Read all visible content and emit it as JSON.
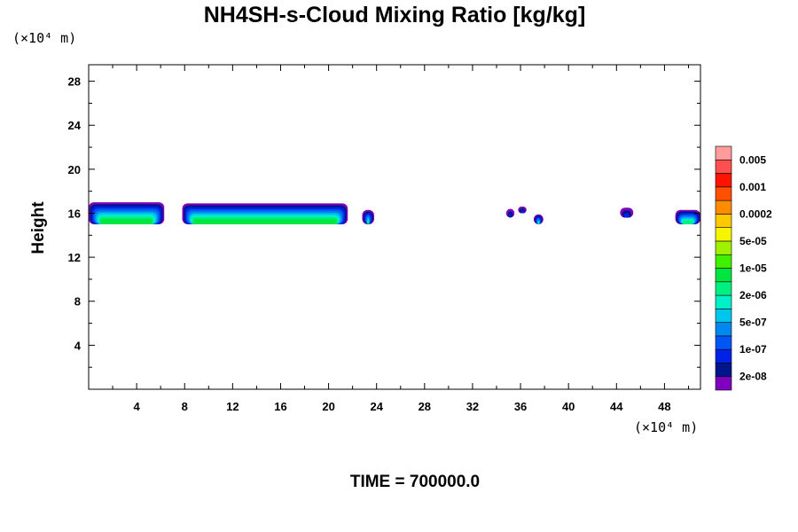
{
  "chart_data": {
    "type": "heatmap",
    "title": "NH4SH-s-Cloud Mixing Ratio [kg/kg]",
    "ylabel": "Height",
    "xlabel": "",
    "x_unit": "(×10⁴ m)",
    "y_unit": "(×10⁴ m)",
    "xlim": [
      0,
      51
    ],
    "ylim": [
      0,
      29.5
    ],
    "x_ticks": [
      4,
      8,
      12,
      16,
      20,
      24,
      28,
      32,
      36,
      40,
      44,
      48
    ],
    "y_ticks": [
      4,
      8,
      12,
      16,
      20,
      24,
      28
    ],
    "time_label": "TIME = 700000.0",
    "colorbar": {
      "colors": [
        "#7f00bf",
        "#00158a",
        "#0022e6",
        "#0055f5",
        "#0088f0",
        "#00c6ee",
        "#00f0c8",
        "#00f080",
        "#00e640",
        "#40f000",
        "#a0f000",
        "#f5f500",
        "#ffc800",
        "#ff8c00",
        "#ff5000",
        "#ff1400",
        "#ff5050",
        "#ff9b9b"
      ],
      "labels": [
        "2e-08",
        "1e-07",
        "5e-07",
        "2e-06",
        "1e-05",
        "5e-05",
        "0.0002",
        "0.001",
        "0.005"
      ]
    },
    "cloud_regions": [
      {
        "x": [
          0,
          6.3
        ],
        "y": [
          15.0,
          17.0
        ],
        "peak_level": 8
      },
      {
        "x": [
          7.8,
          21.6
        ],
        "y": [
          15.0,
          16.9
        ],
        "peak_level": 8
      },
      {
        "x": [
          22.8,
          23.8
        ],
        "y": [
          15.0,
          16.3
        ],
        "peak_level": 7
      },
      {
        "x": [
          34.8,
          35.5
        ],
        "y": [
          15.6,
          16.4
        ],
        "peak_level": 2
      },
      {
        "x": [
          35.8,
          36.5
        ],
        "y": [
          16.0,
          16.6
        ],
        "peak_level": 2
      },
      {
        "x": [
          37.1,
          37.9
        ],
        "y": [
          15.0,
          15.9
        ],
        "peak_level": 6
      },
      {
        "x": [
          44.3,
          45.4
        ],
        "y": [
          15.6,
          16.5
        ],
        "peak_level": 2
      },
      {
        "x": [
          48.9,
          51
        ],
        "y": [
          15.0,
          16.3
        ],
        "peak_level": 7
      }
    ]
  }
}
